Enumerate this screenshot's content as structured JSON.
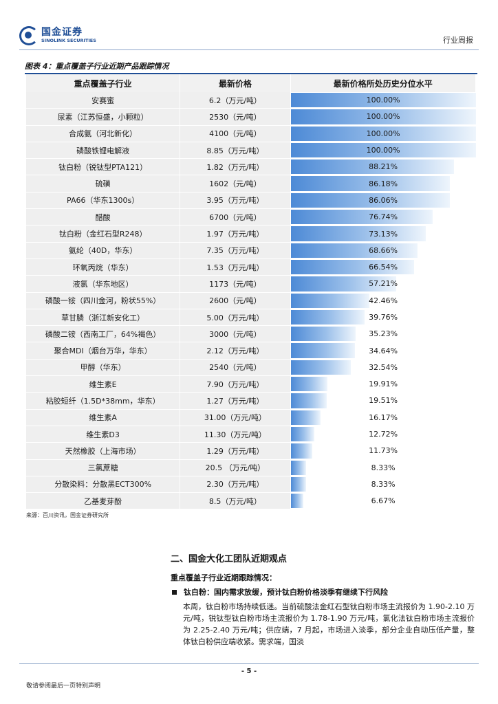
{
  "header": {
    "logo_cn": "国金证券",
    "logo_en": "SINOLINK SECURITIES",
    "report_type": "行业周报"
  },
  "figure": {
    "caption": "图表 4：重点覆盖子行业近期产品跟踪情况",
    "columns": [
      "重点覆盖子行业",
      "最新价格",
      "最新价格所处历史分位水平"
    ],
    "rows": [
      {
        "name": "安赛蜜",
        "price": "6.2（万元/吨）",
        "pct": "100.00%",
        "value": 100.0
      },
      {
        "name": "尿素（江苏恒盛，小颗粒）",
        "price": "2530（元/吨）",
        "pct": "100.00%",
        "value": 100.0
      },
      {
        "name": "合成氨（河北新化）",
        "price": "4100（元/吨）",
        "pct": "100.00%",
        "value": 100.0
      },
      {
        "name": "磷酸铁锂电解液",
        "price": "8.85（万元/吨）",
        "pct": "100.00%",
        "value": 100.0
      },
      {
        "name": "钛白粉（锐钛型PTA121）",
        "price": "1.82（万元/吨）",
        "pct": "88.21%",
        "value": 88.21
      },
      {
        "name": "硫磺",
        "price": "1602（元/吨）",
        "pct": "86.18%",
        "value": 86.18
      },
      {
        "name": "PA66（华东1300s）",
        "price": "3.95（万元/吨）",
        "pct": "86.06%",
        "value": 86.06
      },
      {
        "name": "醋酸",
        "price": "6700（元/吨）",
        "pct": "76.74%",
        "value": 76.74
      },
      {
        "name": "钛白粉（金红石型R248）",
        "price": "1.97（万元/吨）",
        "pct": "73.13%",
        "value": 73.13
      },
      {
        "name": "氨纶（40D，华东）",
        "price": "7.35（万元/吨）",
        "pct": "68.66%",
        "value": 68.66
      },
      {
        "name": "环氧丙烷（华东）",
        "price": "1.53（万元/吨）",
        "pct": "66.54%",
        "value": 66.54
      },
      {
        "name": "液氯（华东地区）",
        "price": "1173（元/吨）",
        "pct": "57.21%",
        "value": 57.21
      },
      {
        "name": "磷酸一铵（四川金河，粉状55%）",
        "price": "2600（元/吨）",
        "pct": "42.46%",
        "value": 42.46
      },
      {
        "name": "草甘膦（浙江新安化工）",
        "price": "5.00（万元/吨）",
        "pct": "39.76%",
        "value": 39.76
      },
      {
        "name": "磷酸二铵（西南工厂，64%褐色）",
        "price": "3000（元/吨）",
        "pct": "35.23%",
        "value": 35.23
      },
      {
        "name": "聚合MDI（烟台万华，华东）",
        "price": "2.12（万元/吨）",
        "pct": "34.64%",
        "value": 34.64
      },
      {
        "name": "甲醇（华东）",
        "price": "2540（元/吨）",
        "pct": "32.54%",
        "value": 32.54
      },
      {
        "name": "维生素E",
        "price": "7.90（万元/吨）",
        "pct": "19.91%",
        "value": 19.91
      },
      {
        "name": "粘胶短纤（1.5D*38mm，华东）",
        "price": "1.27（万元/吨）",
        "pct": "19.51%",
        "value": 19.51
      },
      {
        "name": "维生素A",
        "price": "31.00（万元/吨）",
        "pct": "16.17%",
        "value": 16.17
      },
      {
        "name": "维生素D3",
        "price": "11.30（万元/吨）",
        "pct": "12.72%",
        "value": 12.72
      },
      {
        "name": "天然橡胶（上海市场）",
        "price": "1.29（万元/吨）",
        "pct": "11.73%",
        "value": 11.73
      },
      {
        "name": "三氯蔗糖",
        "price": "20.5 （万元/吨）",
        "pct": "8.33%",
        "value": 8.33
      },
      {
        "name": "分散染料：分散黑ECT300%",
        "price": "2.30（万元/吨）",
        "pct": "8.33%",
        "value": 8.33
      },
      {
        "name": "乙基麦芽酚",
        "price": "8.5（万元/吨）",
        "pct": "6.67%",
        "value": 6.67
      }
    ],
    "source": "来源：百川资讯，国金证券研究所"
  },
  "section": {
    "title": "二、国金大化工团队近期观点",
    "subtitle": "重点覆盖子行业近期跟踪情况：",
    "bullet": "钛白粉：国内需求放缓，预计钛白粉价格淡季有继续下行风险",
    "body": "本周，钛白粉市场持续低迷。当前硫酸法金红石型钛白粉市场主流报价为 1.90-2.10 万元/吨，锐钛型钛白粉市场主流报价为 1.78-1.90 万元/吨，氯化法钛白粉市场主流报价为 2.25-2.40 万元/吨；供应端，7 月起，市场进入淡季，部分企业自动压低产量，整体钛白粉供应端收紧。需求端，国淡"
  },
  "footer": {
    "page": "- 5 -",
    "note": "敬请参阅最后一页特别声明"
  },
  "colors": {
    "brand": "#1f4e96",
    "bar_start": "#4d8ad6",
    "bar_end": "#eef5fc"
  }
}
